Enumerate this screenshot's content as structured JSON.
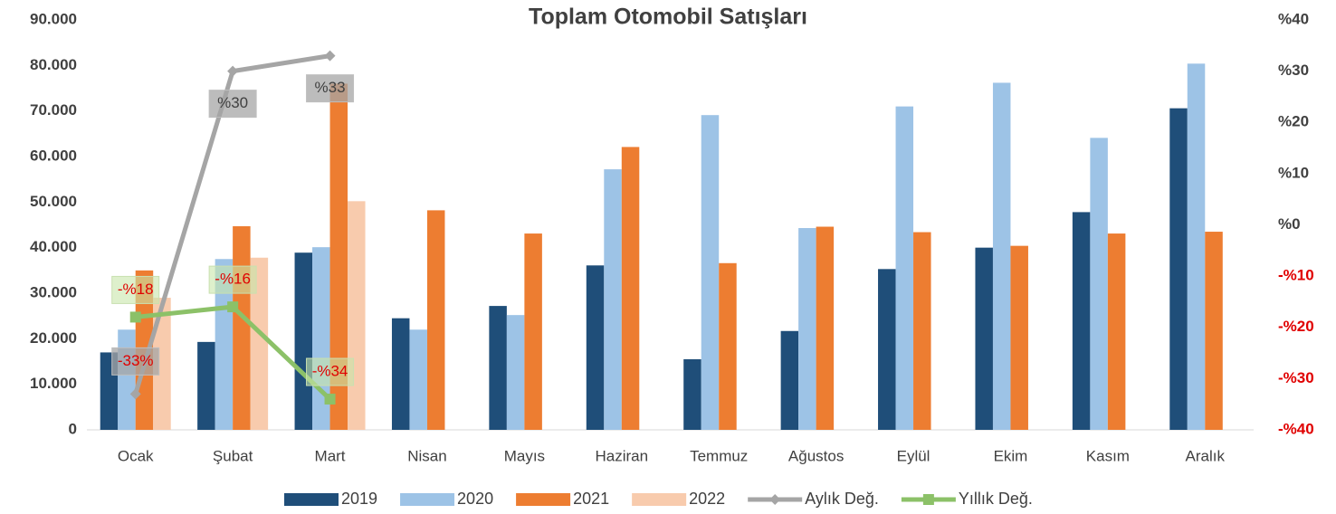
{
  "chart_data": {
    "type": "bar",
    "title": "Toplam Otomobil Satışları",
    "categories": [
      "Ocak",
      "Şubat",
      "Mart",
      "Nisan",
      "Mayıs",
      "Haziran",
      "Temmuz",
      "Ağustos",
      "Eylül",
      "Ekim",
      "Kasım",
      "Aralık"
    ],
    "series": [
      {
        "name": "2019",
        "type": "bar",
        "color": "#1f4e79",
        "values": [
          17000,
          19300,
          38900,
          24500,
          27200,
          36100,
          15500,
          21700,
          35300,
          40000,
          47800,
          70600
        ]
      },
      {
        "name": "2020",
        "type": "bar",
        "color": "#9dc3e6",
        "values": [
          22000,
          37500,
          40100,
          22000,
          25200,
          57200,
          69100,
          44300,
          71000,
          76200,
          64100,
          80400
        ]
      },
      {
        "name": "2021",
        "type": "bar",
        "color": "#ed7d31",
        "values": [
          35000,
          44700,
          76000,
          48200,
          43100,
          62100,
          36600,
          44600,
          43400,
          40400,
          43100,
          43500
        ]
      },
      {
        "name": "2022",
        "type": "bar",
        "color": "#f8cbad",
        "values": [
          29000,
          37800,
          50200,
          null,
          null,
          null,
          null,
          null,
          null,
          null,
          null,
          null
        ]
      },
      {
        "name": "Aylık Değ.",
        "type": "line",
        "axis": "y2",
        "color": "#a5a5a5",
        "marker": "diamond",
        "values": [
          -33,
          30,
          33,
          null,
          null,
          null,
          null,
          null,
          null,
          null,
          null,
          null
        ],
        "value_labels": [
          "-33%",
          "%30",
          "%33",
          null,
          null,
          null,
          null,
          null,
          null,
          null,
          null,
          null
        ]
      },
      {
        "name": "Yıllık Değ.",
        "type": "line",
        "axis": "y2",
        "color": "#8cc168",
        "marker": "square",
        "values": [
          -18,
          -16,
          -34,
          null,
          null,
          null,
          null,
          null,
          null,
          null,
          null,
          null
        ],
        "value_labels": [
          "-%18",
          "-%16",
          "-%34",
          null,
          null,
          null,
          null,
          null,
          null,
          null,
          null,
          null
        ]
      }
    ],
    "ylim": [
      0,
      90000
    ],
    "yticks": [
      0,
      {
        "value": 10000,
        "label": "10.000"
      },
      {
        "value": 20000,
        "label": "20.000"
      },
      {
        "value": 30000,
        "label": "30.000"
      },
      {
        "value": 40000,
        "label": "40.000"
      },
      {
        "value": 50000,
        "label": "50.000"
      },
      {
        "value": 60000,
        "label": "60.000"
      },
      {
        "value": 70000,
        "label": "70.000"
      },
      {
        "value": 80000,
        "label": "80.000"
      },
      {
        "value": 90000,
        "label": "90.000"
      }
    ],
    "y2lim": [
      -40,
      40
    ],
    "y2ticks": [
      {
        "value": -40,
        "label": "-%40"
      },
      {
        "value": -30,
        "label": "-%30"
      },
      {
        "value": -20,
        "label": "-%20"
      },
      {
        "value": -10,
        "label": "-%10"
      },
      {
        "value": 0,
        "label": "%0"
      },
      {
        "value": 10,
        "label": "%10"
      },
      {
        "value": 20,
        "label": "%20"
      },
      {
        "value": 30,
        "label": "%30"
      },
      {
        "value": 40,
        "label": "%40"
      }
    ],
    "grid": false,
    "legend": "bottom"
  }
}
